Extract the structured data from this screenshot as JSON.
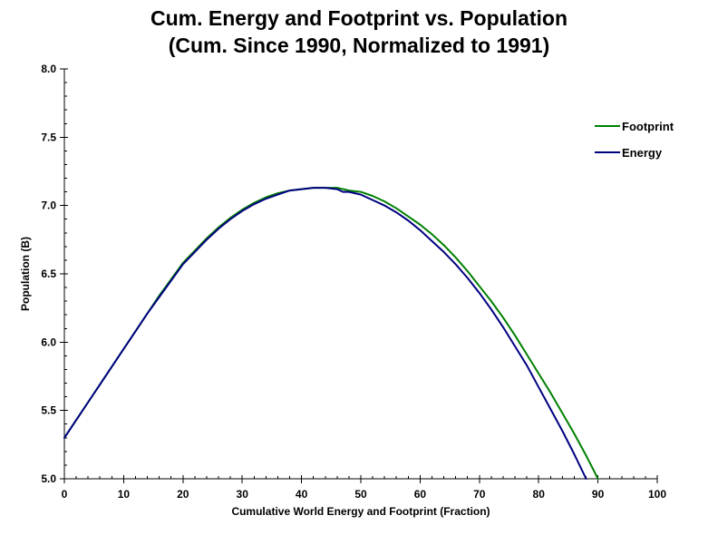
{
  "chart_data": {
    "type": "line",
    "title": "Cum. Energy and Footprint vs. Population",
    "subtitle": "(Cum. Since 1990, Normalized to 1991)",
    "xlabel": "Cumulative World Energy and Footprint (Fraction)",
    "ylabel": "Population (B)",
    "xlim": [
      0,
      100
    ],
    "ylim": [
      5.0,
      8.0
    ],
    "x_tick_labels": [
      "0",
      "10",
      "20",
      "30",
      "40",
      "50",
      "60",
      "70",
      "80",
      "90",
      "100"
    ],
    "y_tick_labels": [
      "5.0",
      "5.5",
      "6.0",
      "6.5",
      "7.0",
      "7.5",
      "8.0"
    ],
    "x_minor_step": 2,
    "y_minor_step": 0.1,
    "grid": false,
    "legend_position": "right",
    "axis_color": "#000000",
    "text_color": "#000000",
    "series": [
      {
        "name": "Footprint",
        "color": "#008000",
        "points": [
          [
            0,
            5.3
          ],
          [
            2,
            5.43
          ],
          [
            4,
            5.56
          ],
          [
            6,
            5.69
          ],
          [
            8,
            5.82
          ],
          [
            10,
            5.95
          ],
          [
            12,
            6.08
          ],
          [
            14,
            6.21
          ],
          [
            16,
            6.34
          ],
          [
            18,
            6.46
          ],
          [
            20,
            6.58
          ],
          [
            22,
            6.67
          ],
          [
            24,
            6.76
          ],
          [
            26,
            6.84
          ],
          [
            28,
            6.91
          ],
          [
            30,
            6.97
          ],
          [
            32,
            7.02
          ],
          [
            34,
            7.06
          ],
          [
            36,
            7.09
          ],
          [
            38,
            7.11
          ],
          [
            40,
            7.12
          ],
          [
            42,
            7.13
          ],
          [
            44,
            7.13
          ],
          [
            46,
            7.13
          ],
          [
            48,
            7.11
          ],
          [
            50,
            7.1
          ],
          [
            52,
            7.07
          ],
          [
            54,
            7.03
          ],
          [
            56,
            6.98
          ],
          [
            58,
            6.92
          ],
          [
            60,
            6.86
          ],
          [
            62,
            6.79
          ],
          [
            64,
            6.71
          ],
          [
            66,
            6.62
          ],
          [
            68,
            6.52
          ],
          [
            70,
            6.41
          ],
          [
            72,
            6.3
          ],
          [
            74,
            6.18
          ],
          [
            76,
            6.05
          ],
          [
            78,
            5.91
          ],
          [
            80,
            5.77
          ],
          [
            82,
            5.63
          ],
          [
            84,
            5.48
          ],
          [
            86,
            5.33
          ],
          [
            88,
            5.17
          ],
          [
            90,
            5.0
          ]
        ]
      },
      {
        "name": "Energy",
        "color": "#000080",
        "points": [
          [
            0,
            5.3
          ],
          [
            2,
            5.43
          ],
          [
            4,
            5.56
          ],
          [
            6,
            5.69
          ],
          [
            8,
            5.82
          ],
          [
            10,
            5.95
          ],
          [
            12,
            6.08
          ],
          [
            14,
            6.21
          ],
          [
            16,
            6.33
          ],
          [
            18,
            6.45
          ],
          [
            20,
            6.57
          ],
          [
            22,
            6.66
          ],
          [
            24,
            6.75
          ],
          [
            26,
            6.83
          ],
          [
            28,
            6.9
          ],
          [
            30,
            6.96
          ],
          [
            32,
            7.01
          ],
          [
            34,
            7.05
          ],
          [
            36,
            7.08
          ],
          [
            38,
            7.11
          ],
          [
            40,
            7.12
          ],
          [
            42,
            7.13
          ],
          [
            44,
            7.13
          ],
          [
            46,
            7.12
          ],
          [
            47,
            7.1
          ],
          [
            48,
            7.1
          ],
          [
            50,
            7.08
          ],
          [
            52,
            7.04
          ],
          [
            54,
            7.0
          ],
          [
            56,
            6.95
          ],
          [
            58,
            6.89
          ],
          [
            60,
            6.82
          ],
          [
            62,
            6.74
          ],
          [
            64,
            6.66
          ],
          [
            66,
            6.57
          ],
          [
            68,
            6.47
          ],
          [
            70,
            6.36
          ],
          [
            72,
            6.24
          ],
          [
            74,
            6.11
          ],
          [
            76,
            5.97
          ],
          [
            78,
            5.83
          ],
          [
            80,
            5.67
          ],
          [
            82,
            5.51
          ],
          [
            84,
            5.35
          ],
          [
            86,
            5.18
          ],
          [
            88,
            5.0
          ]
        ]
      }
    ]
  }
}
